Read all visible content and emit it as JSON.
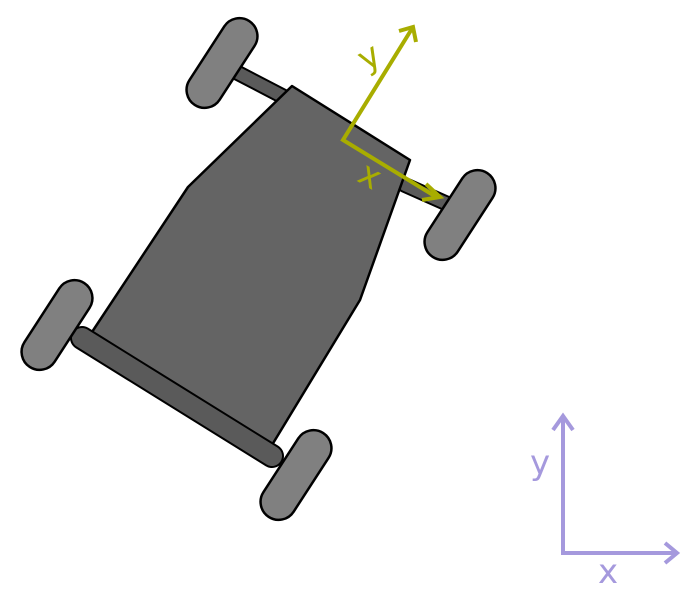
{
  "colors": {
    "body_axes": "#a8ad00",
    "world_axes": "#a599dd",
    "chassis": "#646464",
    "wheel": "#808080",
    "axle": "#5a5a5a",
    "outline": "#000000"
  },
  "body_frame": {
    "x_label": "x",
    "y_label": "y"
  },
  "world_frame": {
    "x_label": "x",
    "y_label": "y"
  }
}
